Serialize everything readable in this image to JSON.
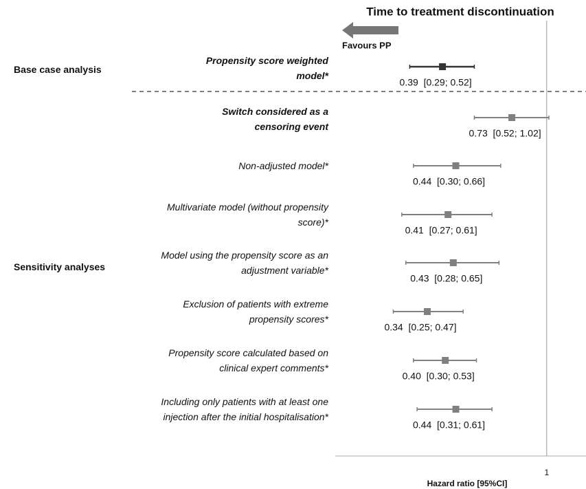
{
  "chart_data": {
    "type": "forest",
    "title": "Time to treatment discontinuation",
    "arrow_label": "Favours PP",
    "x_label": "Hazard ratio [95%CI]",
    "groups": [
      "Base case analysis",
      "Sensitivity analyses"
    ],
    "categories": [
      "Propensity score weighted\nmodel*",
      "Switch considered as a\ncensoring event",
      "Non-adjusted model*",
      "Multivariate model (without propensity\nscore)*",
      "Model using the propensity score as an\nadjustment variable*",
      "Exclusion of patients with extreme\npropensity scores*",
      "Propensity score calculated based on\nclinical expert comments*",
      "Including only patients with at least one\ninjection after the initial hospitalisation*"
    ],
    "values": [
      0.39,
      0.73,
      0.44,
      0.41,
      0.43,
      0.34,
      0.4,
      0.44
    ],
    "lower": [
      0.29,
      0.52,
      0.3,
      0.27,
      0.28,
      0.25,
      0.3,
      0.31
    ],
    "upper": [
      0.52,
      1.02,
      0.66,
      0.61,
      0.65,
      0.47,
      0.53,
      0.61
    ],
    "value_labels": [
      "0.39  [0.29; 0.52]",
      "0.73  [0.52; 1.02]",
      "0.44  [0.30; 0.66]",
      "0.41  [0.27; 0.61]",
      "0.43  [0.28; 0.65]",
      "0.34  [0.25; 0.47]",
      "0.40  [0.30; 0.53]",
      "0.44  [0.31; 0.61]"
    ],
    "xlim": [
      0.148,
      1.4
    ],
    "xticks": [
      1
    ],
    "log_x": true
  }
}
